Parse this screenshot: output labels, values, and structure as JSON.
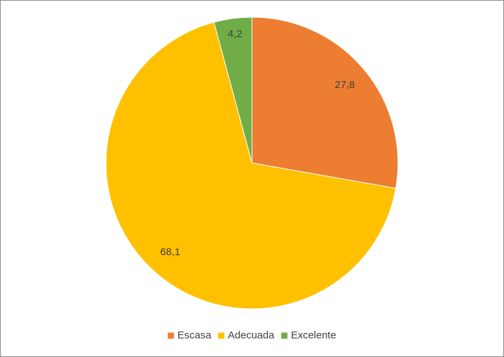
{
  "chart_data": {
    "type": "pie",
    "categories": [
      "Escasa",
      "Adecuada",
      "Excelente"
    ],
    "values": [
      27.8,
      68.1,
      4.2
    ],
    "value_labels": [
      "27,8",
      "68,1",
      "4,2"
    ],
    "colors": [
      "#ed7d31",
      "#ffc000",
      "#70ad47"
    ],
    "legend": "bottom"
  }
}
